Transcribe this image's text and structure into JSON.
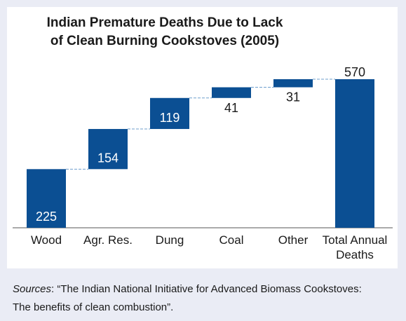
{
  "chart_data": {
    "type": "waterfall",
    "title": [
      "Indian Premature Deaths Due to Lack",
      "of Clean Burning Cookstoves (2005)"
    ],
    "categories": [
      "Wood",
      "Agr. Res.",
      "Dung",
      "Coal",
      "Other",
      "Total Annual Deaths"
    ],
    "values": [
      225,
      154,
      119,
      41,
      31,
      570
    ],
    "measures": [
      "relative",
      "relative",
      "relative",
      "relative",
      "relative",
      "total"
    ],
    "color": "#0b4f93",
    "connector_color": "#6f9fce"
  },
  "source_label": "Sources",
  "source_text": ": “The Indian National Initiative for Advanced Biomass Cookstoves: The benefits of clean combustion”."
}
